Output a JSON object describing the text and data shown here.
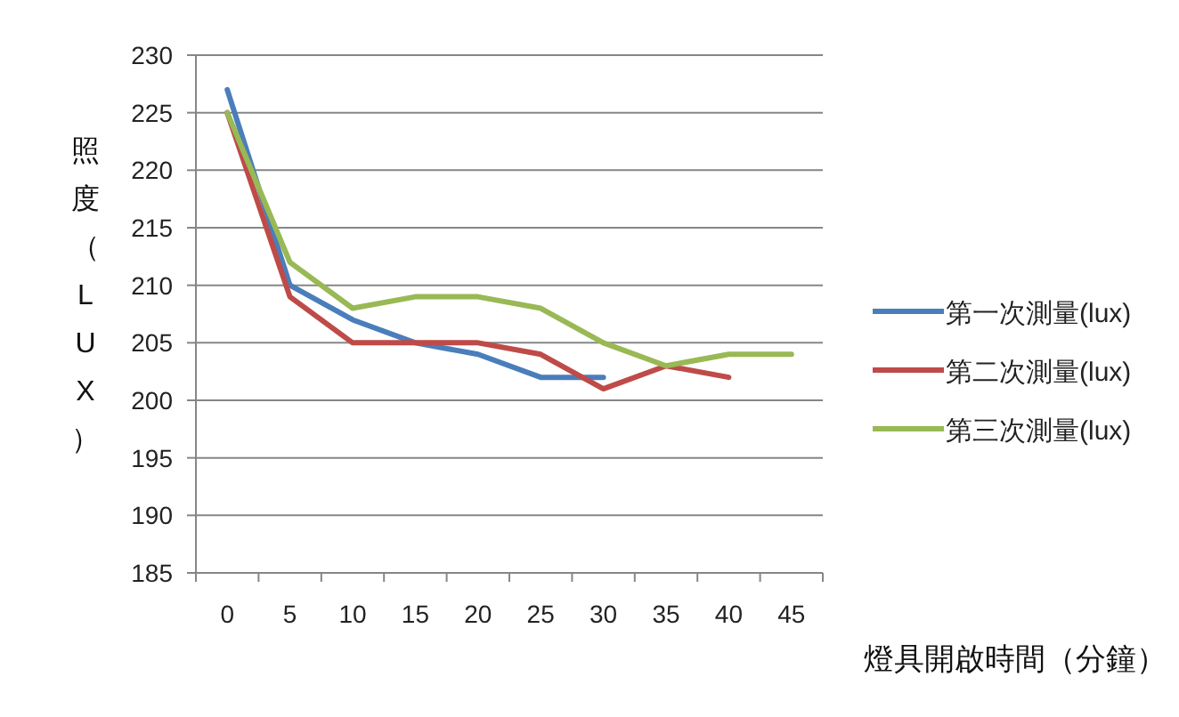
{
  "chart_data": {
    "type": "line",
    "xlabel": "燈具開啟時間（分鐘）",
    "ylabel": "照度（LUX）",
    "categories": [
      "0",
      "5",
      "10",
      "15",
      "20",
      "25",
      "30",
      "35",
      "40",
      "45"
    ],
    "series": [
      {
        "name": "第一次測量(lux)",
        "color": "#4a7ebb",
        "values": [
          227,
          210,
          207,
          205,
          204,
          202,
          202,
          null,
          null,
          null
        ]
      },
      {
        "name": "第二次測量(lux)",
        "color": "#be4b48",
        "values": [
          225,
          209,
          205,
          205,
          205,
          204,
          201,
          203,
          202,
          null
        ]
      },
      {
        "name": "第三次測量(lux)",
        "color": "#98b954",
        "values": [
          225,
          212,
          208,
          209,
          209,
          208,
          205,
          203,
          204,
          204
        ]
      }
    ],
    "ylim": [
      185,
      230
    ],
    "yticks": [
      185,
      190,
      195,
      200,
      205,
      210,
      215,
      220,
      225,
      230
    ],
    "grid": "y",
    "legend": "right"
  }
}
